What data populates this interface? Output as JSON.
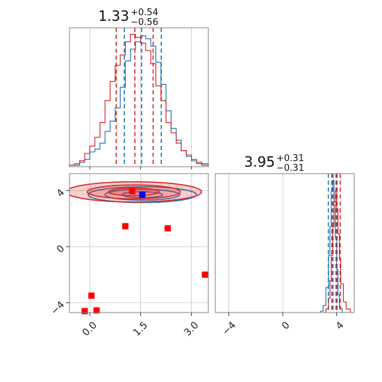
{
  "chart_data": {
    "type": "corner",
    "colors": {
      "blue": "#1f77b4",
      "red": "#d62728",
      "marker_blue": "#0000ff",
      "marker_red": "#ff0000"
    },
    "panels": [
      {
        "id": "hist-param1",
        "type": "histogram",
        "title": {
          "main": "1.33",
          "sup": "+0.54",
          "sub": "−0.56"
        },
        "xlim": [
          -0.6,
          3.5
        ],
        "x_ticks": [
          0.0,
          1.5,
          3.0
        ],
        "series": [
          {
            "name": "",
            "color": "#1f77b4",
            "quantiles": [
              1.02,
              1.53,
              2.11
            ],
            "bins": [
              -0.6,
              -0.45,
              -0.3,
              -0.15,
              0.0,
              0.15,
              0.3,
              0.45,
              0.6,
              0.75,
              0.9,
              1.05,
              1.2,
              1.35,
              1.5,
              1.65,
              1.8,
              1.95,
              2.1,
              2.25,
              2.4,
              2.55,
              2.7,
              2.85,
              3.0,
              3.15,
              3.3,
              3.5
            ],
            "counts": [
              1,
              1,
              3,
              5,
              10,
              12,
              16,
              24,
              31,
              40,
              54,
              72,
              80,
              85,
              89,
              87,
              82,
              71,
              56,
              38,
              26,
              18,
              11,
              7,
              4,
              2,
              1
            ]
          },
          {
            "name": "",
            "color": "#d62728",
            "quantiles": [
              0.78,
              1.33,
              1.87
            ],
            "bins": [
              -0.6,
              -0.45,
              -0.3,
              -0.15,
              0.0,
              0.15,
              0.3,
              0.45,
              0.6,
              0.75,
              0.9,
              1.05,
              1.2,
              1.35,
              1.5,
              1.65,
              1.8,
              1.95,
              2.1,
              2.25,
              2.4,
              2.55,
              2.7,
              2.85,
              3.0,
              3.15,
              3.3,
              3.5
            ],
            "counts": [
              1,
              2,
              4,
              9,
              14,
              20,
              30,
              45,
              58,
              69,
              76,
              85,
              90,
              88,
              84,
              79,
              70,
              55,
              45,
              30,
              23,
              16,
              11,
              8,
              5,
              3,
              2
            ]
          }
        ]
      },
      {
        "id": "hist-param2",
        "type": "histogram",
        "title": {
          "main": "3.95",
          "sup": "+0.31",
          "sub": "−0.31"
        },
        "xlim": [
          -5.0,
          5.3
        ],
        "x_ticks": [
          -4,
          0,
          4
        ],
        "series": [
          {
            "name": "",
            "color": "#1f77b4",
            "quantiles": [
              3.38,
              3.73,
              4.03
            ],
            "bins": [
              2.8,
              3.0,
              3.2,
              3.4,
              3.5,
              3.6,
              3.7,
              3.8,
              3.9,
              4.0,
              4.1,
              4.2,
              4.4
            ],
            "counts": [
              2,
              10,
              35,
              80,
              120,
              170,
              185,
              150,
              105,
              60,
              25,
              6
            ]
          },
          {
            "name": "",
            "color": "#d62728",
            "quantiles": [
              3.64,
              3.95,
              4.26
            ],
            "bins": [
              3.2,
              3.4,
              3.5,
              3.6,
              3.7,
              3.8,
              3.9,
              4.0,
              4.1,
              4.2,
              4.3,
              4.5,
              4.7,
              5.0
            ],
            "counts": [
              5,
              20,
              45,
              80,
              120,
              155,
              170,
              145,
              110,
              75,
              40,
              15,
              5
            ]
          }
        ]
      },
      {
        "id": "contour-2d",
        "type": "scatter",
        "xlim": [
          -0.6,
          3.5
        ],
        "ylim": [
          -4.7,
          5.2
        ],
        "x_ticks": [
          0.0,
          1.5,
          3.0
        ],
        "y_ticks": [
          -4,
          0,
          4
        ],
        "contours": [
          {
            "name": "",
            "color": "#1f77b4",
            "center": [
              1.55,
              3.7
            ],
            "spread": [
              1.0,
              0.35
            ]
          },
          {
            "name": "",
            "color": "#d62728",
            "center": [
              1.3,
              3.9
            ],
            "spread": [
              1.25,
              0.45
            ]
          }
        ],
        "points": [
          {
            "x": 1.25,
            "y": 3.95,
            "color": "#ff0000"
          },
          {
            "x": 1.55,
            "y": 3.7,
            "color": "#0000ff"
          },
          {
            "x": 1.05,
            "y": 1.45,
            "color": "#ff0000"
          },
          {
            "x": 2.3,
            "y": 1.3,
            "color": "#ff0000"
          },
          {
            "x": 3.4,
            "y": -2.0,
            "color": "#ff0000"
          },
          {
            "x": 0.05,
            "y": -3.5,
            "color": "#ff0000"
          },
          {
            "x": -0.15,
            "y": -4.6,
            "color": "#ff0000"
          },
          {
            "x": 0.2,
            "y": -4.55,
            "color": "#ff0000"
          }
        ]
      }
    ]
  }
}
